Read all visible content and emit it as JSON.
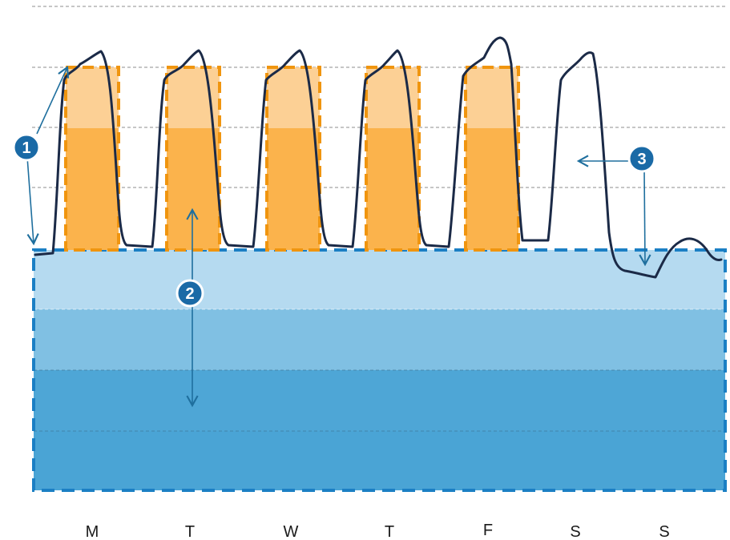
{
  "days": [
    {
      "label": "M",
      "working": true
    },
    {
      "label": "T",
      "working": true
    },
    {
      "label": "W",
      "working": true
    },
    {
      "label": "T",
      "working": true
    },
    {
      "label": "F",
      "working": true
    },
    {
      "label": "S",
      "working": false
    },
    {
      "label": "S",
      "working": false
    }
  ],
  "callouts": [
    {
      "number": "1"
    },
    {
      "number": "2"
    },
    {
      "number": "3"
    }
  ],
  "colors": {
    "base_band_1": "#b5daf0",
    "base_band_2": "#80c0e3",
    "base_band_3": "#4ea6d6",
    "base_band_4": "#4aa4d5",
    "workday_light": "#fcd095",
    "workday_dark": "#fbb34c",
    "workday_border": "#f0950f",
    "base_border": "#1b7fc4",
    "load_curve": "#1b2a47",
    "badge": "#1a6aa6",
    "arrow": "#1f6f9e"
  }
}
